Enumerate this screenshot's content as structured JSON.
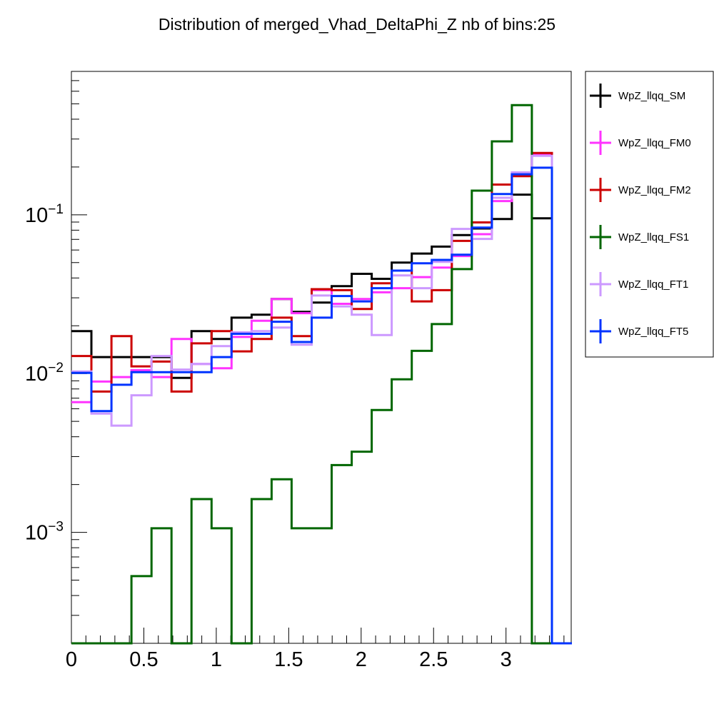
{
  "chart_data": {
    "type": "line",
    "title": "Distribution of merged_Vhad_DeltaPhi_Z nb of bins:25",
    "xlabel": "",
    "ylabel": "",
    "y_scale": "log",
    "xlim": [
      0,
      3.45
    ],
    "ylim": [
      0.0002,
      0.8
    ],
    "grid": false,
    "legend_position": "right",
    "x_tick_labels": [
      "0",
      "0.5",
      "1",
      "1.5",
      "2",
      "2.5",
      "3"
    ],
    "x_ticks": [
      0,
      0.5,
      1,
      1.5,
      2,
      2.5,
      3
    ],
    "y_tick_labels": [
      {
        "base": "10",
        "exp": "−3",
        "value": 0.001
      },
      {
        "base": "10",
        "exp": "−2",
        "value": 0.01
      },
      {
        "base": "10",
        "exp": "−1",
        "value": 0.1
      }
    ],
    "bin_edges": [
      0,
      0.1382,
      0.2764,
      0.4146,
      0.5528,
      0.691,
      0.8292,
      0.9674,
      1.1056,
      1.2438,
      1.382,
      1.5202,
      1.6584,
      1.7966,
      1.9348,
      2.073,
      2.2112,
      2.3494,
      2.4876,
      2.6258,
      2.764,
      2.9022,
      3.0404,
      3.1786,
      3.3168,
      3.455
    ],
    "series": [
      {
        "name": "WpZ_llqq_SM",
        "color": "#000000",
        "values": [
          0.0185,
          0.0127,
          0.0127,
          0.0127,
          0.0127,
          0.0094,
          0.0185,
          0.0165,
          0.0225,
          0.0235,
          0.0295,
          0.0245,
          0.028,
          0.0355,
          0.0425,
          0.0395,
          0.05,
          0.057,
          0.063,
          0.0745,
          0.082,
          0.094,
          0.134,
          0.095,
          0
        ]
      },
      {
        "name": "WpZ_llqq_FM0",
        "color": "#ff33ff",
        "values": [
          0.0066,
          0.0089,
          0.0095,
          0.0105,
          0.0095,
          0.0165,
          0.0115,
          0.0108,
          0.017,
          0.0215,
          0.0295,
          0.024,
          0.0335,
          0.0275,
          0.0295,
          0.0325,
          0.0345,
          0.0405,
          0.0465,
          0.055,
          0.0755,
          0.122,
          0.18,
          0.24,
          0
        ]
      },
      {
        "name": "WpZ_llqq_FM2",
        "color": "#cc0000",
        "values": [
          0.0129,
          0.0077,
          0.0172,
          0.0111,
          0.0119,
          0.0077,
          0.0155,
          0.0185,
          0.0138,
          0.0165,
          0.0225,
          0.0172,
          0.034,
          0.0335,
          0.0255,
          0.037,
          0.0445,
          0.0285,
          0.0335,
          0.0685,
          0.0895,
          0.155,
          0.175,
          0.245,
          0
        ]
      },
      {
        "name": "WpZ_llqq_FS1",
        "color": "#006600",
        "values": [
          0.0002,
          0.0002,
          0.0002,
          0.00053,
          0.00106,
          0.0002,
          0.00162,
          0.00106,
          0.0002,
          0.00162,
          0.00216,
          0.00106,
          0.00106,
          0.00265,
          0.00322,
          0.0059,
          0.0092,
          0.0139,
          0.0205,
          0.0455,
          0.142,
          0.29,
          0.49,
          0.0002,
          0
        ]
      },
      {
        "name": "WpZ_llqq_FT1",
        "color": "#cc99ff",
        "values": [
          0.0103,
          0.0056,
          0.0047,
          0.0073,
          0.0129,
          0.0106,
          0.0115,
          0.0149,
          0.0182,
          0.0185,
          0.0195,
          0.0152,
          0.031,
          0.0265,
          0.0235,
          0.0175,
          0.0415,
          0.0345,
          0.0505,
          0.0815,
          0.0705,
          0.128,
          0.185,
          0.235,
          0
        ]
      },
      {
        "name": "WpZ_llqq_FT5",
        "color": "#0033ff",
        "values": [
          0.0101,
          0.0058,
          0.0085,
          0.0102,
          0.0102,
          0.0102,
          0.0102,
          0.0127,
          0.0178,
          0.0178,
          0.0212,
          0.0158,
          0.0225,
          0.0308,
          0.0285,
          0.0345,
          0.0445,
          0.0495,
          0.052,
          0.056,
          0.083,
          0.135,
          0.18,
          0.198,
          0
        ]
      }
    ]
  }
}
